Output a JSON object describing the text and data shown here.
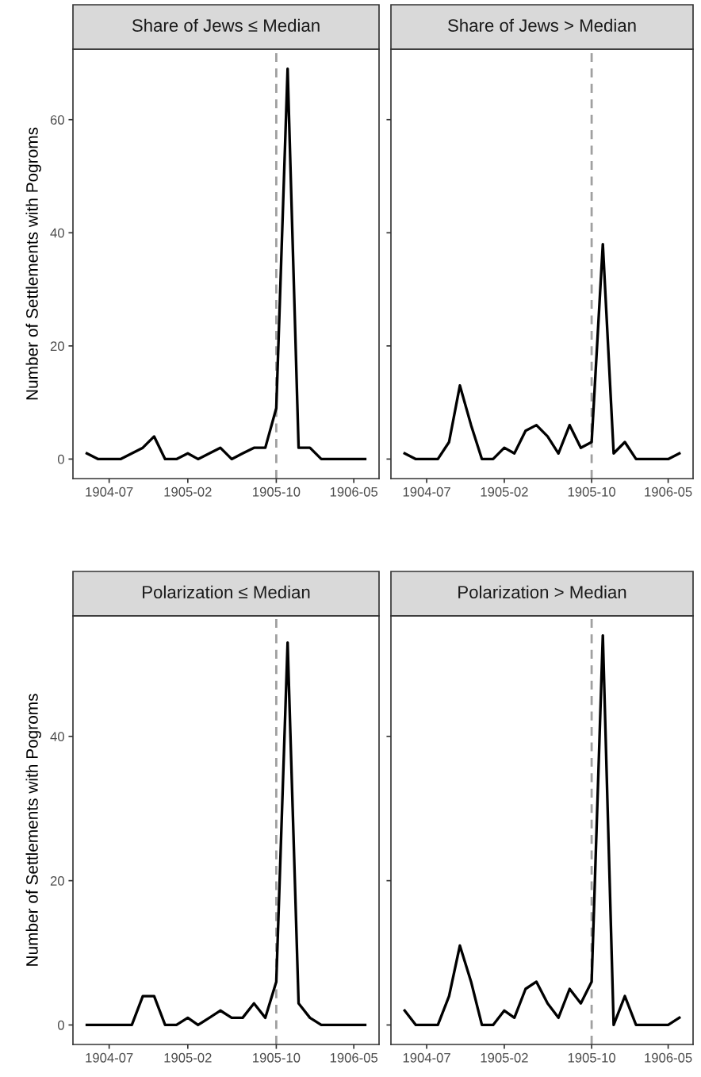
{
  "chart_data": [
    {
      "type": "line",
      "title": "Share of Jews ≤ Median",
      "ylabel": "Number of Settlements with Pogroms",
      "x": [
        "1904-05",
        "1904-06",
        "1904-07",
        "1904-08",
        "1904-09",
        "1904-10",
        "1904-11",
        "1904-12",
        "1905-01",
        "1905-02",
        "1905-03",
        "1905-04",
        "1905-05",
        "1905-06",
        "1905-07",
        "1905-08",
        "1905-09",
        "1905-10",
        "1905-11",
        "1905-12",
        "1906-01",
        "1906-02",
        "1906-03",
        "1906-04",
        "1906-05",
        "1906-06"
      ],
      "series": [
        {
          "color": "#000000",
          "values": [
            1,
            0,
            0,
            0,
            1,
            2,
            4,
            0,
            0,
            1,
            0,
            1,
            2,
            0,
            1,
            2,
            2,
            9,
            69,
            2,
            2,
            0,
            0,
            0,
            0,
            0
          ]
        }
      ],
      "xlim": [
        "1904-03-24",
        "1906-07-09"
      ],
      "xticks": [
        "1904-07",
        "1905-02",
        "1905-10",
        "1906-05"
      ],
      "ylim": [
        -3.45,
        72.45
      ],
      "yticks": [
        0,
        20,
        40,
        60
      ],
      "ref_lines": [
        {
          "axis": "x",
          "value": "1905-10",
          "color": "#a0a0a0",
          "line_style": "dashed"
        }
      ],
      "grid": false,
      "line_style": "solid"
    },
    {
      "type": "line",
      "title": "Share of Jews > Median",
      "x": [
        "1904-05",
        "1904-06",
        "1904-07",
        "1904-08",
        "1904-09",
        "1904-10",
        "1904-11",
        "1904-12",
        "1905-01",
        "1905-02",
        "1905-03",
        "1905-04",
        "1905-05",
        "1905-06",
        "1905-07",
        "1905-08",
        "1905-09",
        "1905-10",
        "1905-11",
        "1905-12",
        "1906-01",
        "1906-02",
        "1906-03",
        "1906-04",
        "1906-05",
        "1906-06"
      ],
      "series": [
        {
          "color": "#000000",
          "values": [
            1,
            0,
            0,
            0,
            3,
            13,
            6,
            0,
            0,
            2,
            1,
            5,
            6,
            4,
            1,
            6,
            2,
            3,
            38,
            1,
            3,
            0,
            0,
            0,
            0,
            1
          ]
        }
      ],
      "xlim": [
        "1904-03-24",
        "1906-07-09"
      ],
      "xticks": [
        "1904-07",
        "1905-02",
        "1905-10",
        "1906-05"
      ],
      "ylim": [
        -3.45,
        72.45
      ],
      "yticks": [
        0,
        20,
        40,
        60
      ],
      "tick_labels": "x",
      "ref_lines": [
        {
          "axis": "x",
          "value": "1905-10",
          "color": "#a0a0a0",
          "line_style": "dashed"
        }
      ],
      "grid": false,
      "line_style": "solid"
    },
    {
      "type": "line",
      "title": "Polarization ≤ Median",
      "ylabel": "Number of Settlements with Pogroms",
      "x": [
        "1904-05",
        "1904-06",
        "1904-07",
        "1904-08",
        "1904-09",
        "1904-10",
        "1904-11",
        "1904-12",
        "1905-01",
        "1905-02",
        "1905-03",
        "1905-04",
        "1905-05",
        "1905-06",
        "1905-07",
        "1905-08",
        "1905-09",
        "1905-10",
        "1905-11",
        "1905-12",
        "1906-01",
        "1906-02",
        "1906-03",
        "1906-04",
        "1906-05",
        "1906-06"
      ],
      "series": [
        {
          "color": "#000000",
          "values": [
            0,
            0,
            0,
            0,
            0,
            4,
            4,
            0,
            0,
            1,
            0,
            1,
            2,
            1,
            1,
            3,
            1,
            6,
            53,
            3,
            1,
            0,
            0,
            0,
            0,
            0
          ]
        }
      ],
      "xlim": [
        "1904-03-24",
        "1906-07-09"
      ],
      "xticks": [
        "1904-07",
        "1905-02",
        "1905-10",
        "1906-05"
      ],
      "ylim": [
        -2.7,
        56.7
      ],
      "yticks": [
        0,
        20,
        40
      ],
      "ref_lines": [
        {
          "axis": "x",
          "value": "1905-10",
          "color": "#a0a0a0",
          "line_style": "dashed"
        }
      ],
      "grid": false,
      "line_style": "solid"
    },
    {
      "type": "line",
      "title": "Polarization > Median",
      "x": [
        "1904-05",
        "1904-06",
        "1904-07",
        "1904-08",
        "1904-09",
        "1904-10",
        "1904-11",
        "1904-12",
        "1905-01",
        "1905-02",
        "1905-03",
        "1905-04",
        "1905-05",
        "1905-06",
        "1905-07",
        "1905-08",
        "1905-09",
        "1905-10",
        "1905-11",
        "1905-12",
        "1906-01",
        "1906-02",
        "1906-03",
        "1906-04",
        "1906-05",
        "1906-06"
      ],
      "series": [
        {
          "color": "#000000",
          "values": [
            2,
            0,
            0,
            0,
            4,
            11,
            6,
            0,
            0,
            2,
            1,
            5,
            6,
            3,
            1,
            5,
            3,
            6,
            54,
            0,
            4,
            0,
            0,
            0,
            0,
            1
          ]
        }
      ],
      "xlim": [
        "1904-03-24",
        "1906-07-09"
      ],
      "xticks": [
        "1904-07",
        "1905-02",
        "1905-10",
        "1906-05"
      ],
      "ylim": [
        -2.7,
        56.7
      ],
      "yticks": [
        0,
        20,
        40
      ],
      "tick_labels": "x",
      "ref_lines": [
        {
          "axis": "x",
          "value": "1905-10",
          "color": "#a0a0a0",
          "line_style": "dashed"
        }
      ],
      "grid": false,
      "line_style": "solid"
    }
  ]
}
